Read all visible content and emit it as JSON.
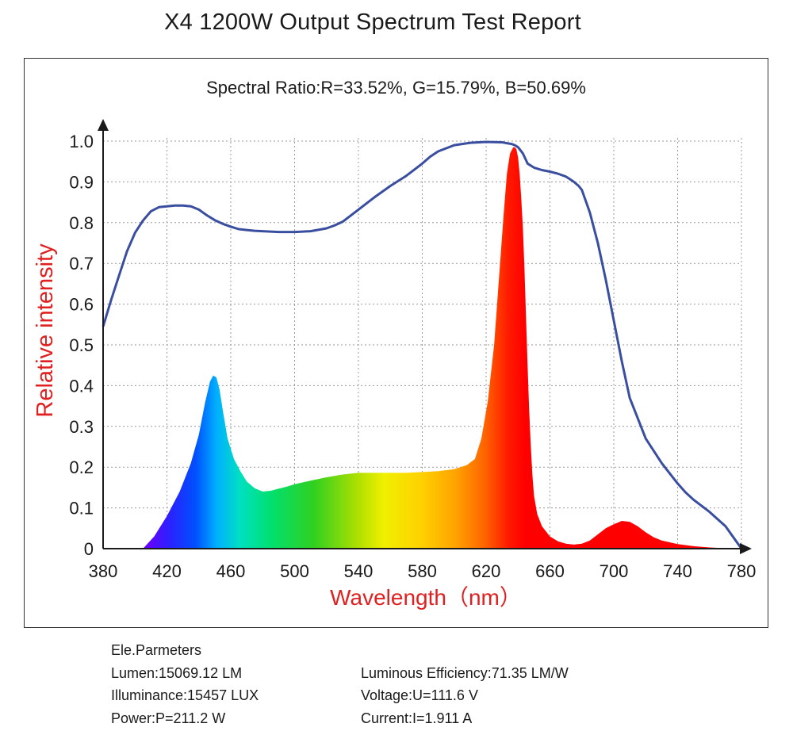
{
  "title": "X4 1200W Output Spectrum Test Report",
  "subtitle": "Spectral Ratio:R=33.52%, G=15.79%, B=50.69%",
  "params": {
    "header": "Ele.Parmeters",
    "lumen": "Lumen:15069.12 LM",
    "efficiency": "Luminous Efficiency:71.35 LM/W",
    "illuminance": "Illuminance:15457 LUX",
    "voltage": "Voltage:U=111.6 V",
    "power": "Power:P=211.2 W",
    "current": "Current:I=1.911 A"
  },
  "chart_data": {
    "type": "area",
    "xlabel": "Wavelength（nm）",
    "ylabel": "Relative intensity",
    "xlim": [
      380,
      780
    ],
    "ylim": [
      0,
      1.0
    ],
    "xticks": [
      "380",
      "420",
      "460",
      "500",
      "540",
      "580",
      "620",
      "660",
      "700",
      "740",
      "780"
    ],
    "yticks": [
      "0",
      "0.1",
      "0.2",
      "0.3",
      "0.4",
      "0.5",
      "0.6",
      "0.7",
      "0.8",
      "0.9",
      "1.0"
    ],
    "grid": true,
    "colors": {
      "axis_label": "#e02020",
      "line": "#3a4ea0"
    },
    "series": [
      {
        "style": "spectrum-area",
        "x": [
          405,
          412,
          420,
          428,
          435,
          440,
          444,
          447,
          449,
          451,
          453,
          455,
          458,
          462,
          466,
          470,
          475,
          480,
          485,
          490,
          495,
          500,
          510,
          520,
          530,
          540,
          550,
          560,
          570,
          580,
          590,
          600,
          608,
          613,
          617,
          621,
          625,
          628,
          631,
          633,
          635,
          637,
          638,
          639,
          640,
          641,
          642,
          643,
          644,
          645,
          646,
          647,
          648,
          649,
          650,
          652,
          655,
          660,
          665,
          670,
          675,
          680,
          685,
          690,
          695,
          700,
          705,
          710,
          715,
          720,
          725,
          730,
          740,
          750,
          760,
          770,
          775,
          780
        ],
        "y": [
          0.0,
          0.03,
          0.08,
          0.14,
          0.21,
          0.28,
          0.36,
          0.41,
          0.425,
          0.42,
          0.39,
          0.34,
          0.27,
          0.22,
          0.19,
          0.165,
          0.148,
          0.14,
          0.142,
          0.147,
          0.152,
          0.158,
          0.167,
          0.175,
          0.182,
          0.186,
          0.186,
          0.186,
          0.186,
          0.188,
          0.19,
          0.195,
          0.205,
          0.22,
          0.27,
          0.36,
          0.5,
          0.66,
          0.82,
          0.92,
          0.97,
          0.985,
          0.985,
          0.98,
          0.96,
          0.92,
          0.86,
          0.79,
          0.69,
          0.57,
          0.45,
          0.34,
          0.25,
          0.18,
          0.13,
          0.085,
          0.055,
          0.03,
          0.018,
          0.012,
          0.01,
          0.012,
          0.02,
          0.035,
          0.05,
          0.06,
          0.068,
          0.066,
          0.055,
          0.04,
          0.028,
          0.02,
          0.011,
          0.006,
          0.003,
          0.001,
          0.0,
          0.0
        ]
      },
      {
        "style": "line",
        "x": [
          380,
          385,
          390,
          395,
          400,
          405,
          410,
          415,
          420,
          425,
          430,
          435,
          440,
          445,
          450,
          455,
          460,
          465,
          470,
          475,
          480,
          490,
          500,
          510,
          520,
          525,
          530,
          540,
          550,
          560,
          570,
          580,
          585,
          590,
          600,
          610,
          620,
          630,
          633,
          636,
          638,
          640,
          643,
          646,
          650,
          655,
          660,
          665,
          670,
          672,
          675,
          678,
          680,
          685,
          690,
          695,
          700,
          705,
          710,
          720,
          730,
          735,
          740,
          745,
          750,
          760,
          770,
          780
        ],
        "y": [
          0.545,
          0.61,
          0.67,
          0.73,
          0.775,
          0.805,
          0.828,
          0.838,
          0.84,
          0.842,
          0.842,
          0.84,
          0.832,
          0.818,
          0.806,
          0.797,
          0.79,
          0.784,
          0.782,
          0.78,
          0.779,
          0.777,
          0.777,
          0.779,
          0.786,
          0.793,
          0.802,
          0.832,
          0.862,
          0.89,
          0.915,
          0.945,
          0.962,
          0.975,
          0.99,
          0.996,
          0.998,
          0.997,
          0.995,
          0.993,
          0.99,
          0.985,
          0.97,
          0.945,
          0.935,
          0.929,
          0.925,
          0.92,
          0.913,
          0.908,
          0.9,
          0.89,
          0.88,
          0.825,
          0.75,
          0.66,
          0.56,
          0.46,
          0.37,
          0.27,
          0.21,
          0.185,
          0.16,
          0.138,
          0.12,
          0.09,
          0.055,
          0.0
        ]
      }
    ]
  }
}
